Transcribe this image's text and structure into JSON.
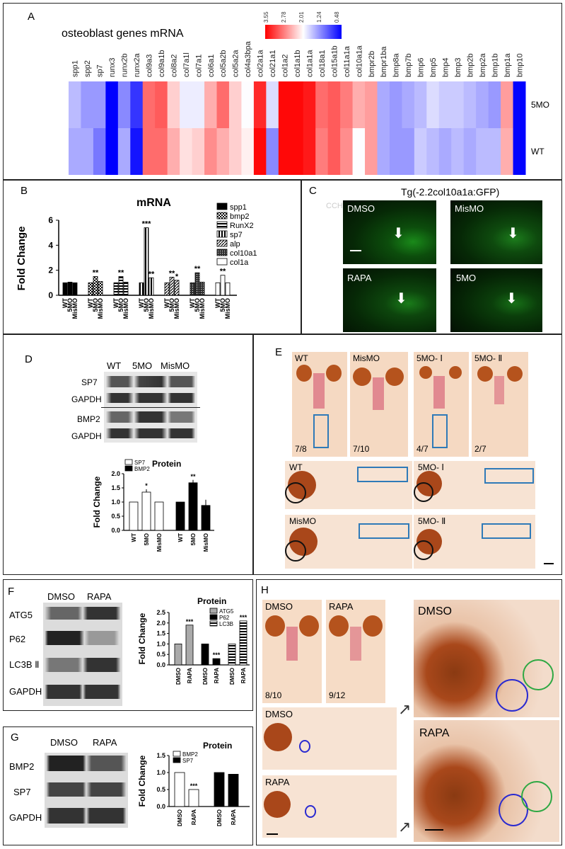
{
  "panelA": {
    "label": "A",
    "title": "osteoblast  genes mRNA",
    "scale_ticks": [
      "3.55",
      "2.78",
      "2.01",
      "1.24",
      "0.48"
    ],
    "genes": [
      "spp1",
      "spp2",
      "sp7",
      "runx3",
      "runx2b",
      "runx2a",
      "col9a3",
      "col9a1b",
      "col8a2",
      "col7a1l",
      "col7a1",
      "col6a1",
      "col5a2b",
      "col5a2a",
      "col4a3bpa",
      "col2a1a",
      "col21a1",
      "col1a2",
      "col1a1b",
      "col1a1a",
      "col18a1",
      "col15a1b",
      "col11a1a",
      "col10a1a",
      "bmpr2b",
      "bmpr1ba",
      "bmp8a",
      "bmp7b",
      "bmp6",
      "bmp5",
      "bmp4",
      "bmp3",
      "bmp2b",
      "bmp2a",
      "bmp1b",
      "bmp1a",
      "bmp10"
    ],
    "rows": [
      "5MO",
      "WT"
    ],
    "values_5MO": [
      1.6,
      1.4,
      1.4,
      0.0,
      1.3,
      0.8,
      2.9,
      3.0,
      2.3,
      1.9,
      1.9,
      2.5,
      2.9,
      2.3,
      2.0,
      3.3,
      1.8,
      3.5,
      3.5,
      3.4,
      2.9,
      3.0,
      2.8,
      2.5,
      2.6,
      1.5,
      1.4,
      1.5,
      1.6,
      1.8,
      1.7,
      1.7,
      1.6,
      1.5,
      1.4,
      2.6,
      0.5
    ],
    "values_WT": [
      1.5,
      1.5,
      1.2,
      0.0,
      1.5,
      0.6,
      2.9,
      2.9,
      2.5,
      2.2,
      2.3,
      2.7,
      2.5,
      2.3,
      2.1,
      3.5,
      1.3,
      3.5,
      3.5,
      3.4,
      2.8,
      3.0,
      2.7,
      2.0,
      2.6,
      1.5,
      1.4,
      1.4,
      1.7,
      1.6,
      1.5,
      1.6,
      1.5,
      1.6,
      1.6,
      2.5,
      0.5
    ],
    "colors": {
      "high": "#ff0000",
      "mid": "#ffffff",
      "low": "#0000ff"
    }
  },
  "panelB": {
    "label": "B",
    "chart_data": {
      "type": "bar",
      "title": "mRNA",
      "ylabel": "Fold Change",
      "ylim": [
        0,
        6
      ],
      "yticks": [
        "0",
        "2",
        "4",
        "6"
      ],
      "groups": [
        "spp1",
        "bmp2",
        "RunX2",
        "sp7",
        "alp",
        "col10a1",
        "col1a"
      ],
      "categories": [
        "WT",
        "5MO",
        "MisMO"
      ],
      "series": [
        {
          "name": "spp1",
          "values": [
            1.0,
            1.05,
            1.0
          ],
          "sig": [
            "",
            "",
            ""
          ]
        },
        {
          "name": "bmp2",
          "values": [
            1.0,
            1.5,
            1.1
          ],
          "sig": [
            "",
            "**",
            ""
          ]
        },
        {
          "name": "RunX2",
          "values": [
            1.0,
            1.5,
            1.05
          ],
          "sig": [
            "",
            "**",
            ""
          ]
        },
        {
          "name": "sp7",
          "values": [
            1.0,
            5.4,
            1.4
          ],
          "sig": [
            "",
            "***",
            "**"
          ]
        },
        {
          "name": "alp",
          "values": [
            1.0,
            1.45,
            1.2
          ],
          "sig": [
            "",
            "**",
            "*"
          ]
        },
        {
          "name": "col10a1",
          "values": [
            1.0,
            1.8,
            1.05
          ],
          "sig": [
            "",
            "**",
            ""
          ]
        },
        {
          "name": "col1a",
          "values": [
            1.0,
            1.6,
            1.0
          ],
          "sig": [
            "",
            "**",
            ""
          ]
        }
      ]
    }
  },
  "panelC": {
    "label": "C",
    "title": "Tg(-2.2col10a1a:GFP)",
    "stamp": "CCH",
    "images": [
      "DMSO",
      "MisMO",
      "RAPA",
      "5MO"
    ]
  },
  "panelD": {
    "label": "D",
    "blot_cols": [
      "WT",
      "5MO",
      "MisMO"
    ],
    "blot_rows": [
      "SP7",
      "GAPDH",
      "BMP2",
      "GAPDH"
    ],
    "chart_data": {
      "type": "bar",
      "title": "Protein",
      "ylabel": "Fold Change",
      "ylim": [
        0,
        2.0
      ],
      "yticks": [
        "0.0",
        "0.5",
        "1.0",
        "1.5",
        "2.0"
      ],
      "categories": [
        "WT",
        "5MO",
        "MisMO"
      ],
      "series": [
        {
          "name": "SP7",
          "values": [
            1.0,
            1.35,
            1.0
          ],
          "err": [
            0,
            0.1,
            0
          ],
          "sig": [
            "",
            "*",
            ""
          ]
        },
        {
          "name": "BMP2",
          "values": [
            1.0,
            1.68,
            0.88
          ],
          "err": [
            0,
            0.1,
            0.2
          ],
          "sig": [
            "",
            "**",
            ""
          ]
        }
      ]
    }
  },
  "panelE": {
    "label": "E",
    "top": [
      {
        "name": "WT",
        "ratio": "7/8"
      },
      {
        "name": "MisMO",
        "ratio": "7/10"
      },
      {
        "name": "5MO- Ⅰ",
        "ratio": "4/7"
      },
      {
        "name": "5MO- Ⅱ",
        "ratio": "2/7"
      }
    ],
    "lateral": [
      "WT",
      "5MO- Ⅰ",
      "MisMO",
      "5MO- Ⅱ"
    ]
  },
  "panelF": {
    "label": "F",
    "blot_cols": [
      "DMSO",
      "RAPA"
    ],
    "blot_rows": [
      "ATG5",
      "P62",
      "LC3B Ⅱ",
      "GAPDH"
    ],
    "chart_data": {
      "type": "bar",
      "title": "Protein",
      "ylabel": "Fold Change",
      "ylim": [
        0,
        2.5
      ],
      "yticks": [
        "0.0",
        "0.5",
        "1.0",
        "1.5",
        "2.0",
        "2.5"
      ],
      "categories": [
        "DMSO",
        "RAPA"
      ],
      "series": [
        {
          "name": "ATG5",
          "values": [
            1.0,
            1.9
          ],
          "sig": [
            "",
            "***"
          ]
        },
        {
          "name": "P62",
          "values": [
            1.0,
            0.3
          ],
          "sig": [
            "",
            "***"
          ]
        },
        {
          "name": "LC3B",
          "values": [
            1.0,
            2.1
          ],
          "sig": [
            "",
            "***"
          ]
        }
      ]
    }
  },
  "panelG": {
    "label": "G",
    "blot_cols": [
      "DMSO",
      "RAPA"
    ],
    "blot_rows": [
      "BMP2",
      "SP7",
      "GAPDH"
    ],
    "chart_data": {
      "type": "bar",
      "title": "Protein",
      "ylabel": "Fold Change",
      "ylim": [
        0,
        1.5
      ],
      "yticks": [
        "0.0",
        "0.5",
        "1.0",
        "1.5"
      ],
      "categories": [
        "DMSO",
        "RAPA"
      ],
      "series": [
        {
          "name": "BMP2",
          "values": [
            1.0,
            0.5
          ],
          "sig": [
            "",
            "***"
          ]
        },
        {
          "name": "SP7",
          "values": [
            1.0,
            0.95
          ],
          "sig": [
            "",
            ""
          ]
        }
      ]
    }
  },
  "panelH": {
    "label": "H",
    "top": [
      {
        "name": "DMSO",
        "ratio": "8/10"
      },
      {
        "name": "RAPA",
        "ratio": "9/12"
      }
    ],
    "lateral": [
      "DMSO",
      "RAPA"
    ],
    "zoom": [
      "DMSO",
      "RAPA"
    ]
  }
}
